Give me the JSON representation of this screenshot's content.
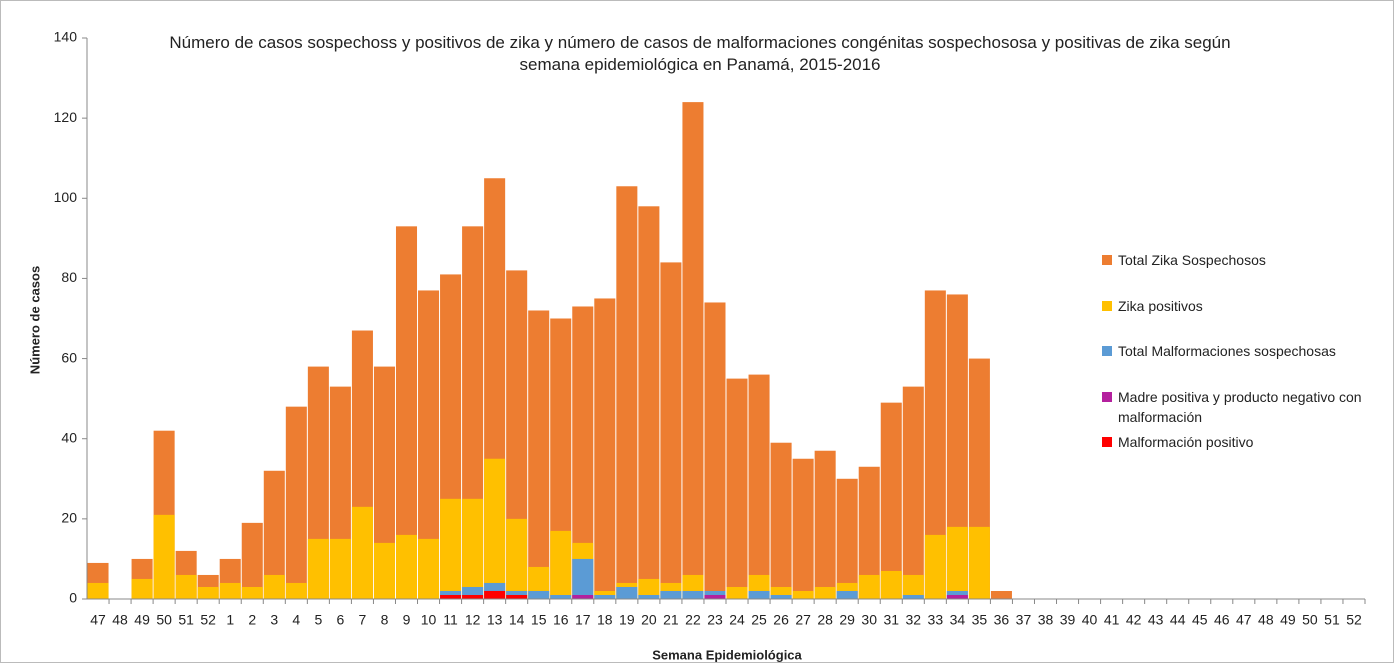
{
  "chart_data": {
    "type": "bar",
    "title": "Número de casos sospechoss y positivos de zika y número de casos de malformaciones congénitas sospechososa y positivas de zika según semana epidemiológica en Panamá, 2015-2016",
    "x_label": "Semana Epidemiológica",
    "y_label": "Número de casos",
    "categories": [
      "47",
      "48",
      "49",
      "50",
      "51",
      "52",
      "1",
      "2",
      "3",
      "4",
      "5",
      "6",
      "7",
      "8",
      "9",
      "10",
      "11",
      "12",
      "13",
      "14",
      "15",
      "16",
      "17",
      "18",
      "19",
      "20",
      "21",
      "22",
      "23",
      "24",
      "25",
      "26",
      "27",
      "28",
      "29",
      "30",
      "31",
      "32",
      "33",
      "34",
      "35",
      "36",
      "37",
      "38",
      "39",
      "40",
      "41",
      "42",
      "43",
      "44",
      "45",
      "46",
      "47",
      "48",
      "49",
      "50",
      "51",
      "52"
    ],
    "series": [
      {
        "name": "Total Zika Sospechosos",
        "color": "#ed7d31",
        "values": [
          9,
          0,
          10,
          42,
          12,
          6,
          10,
          19,
          32,
          48,
          58,
          53,
          67,
          58,
          93,
          77,
          81,
          93,
          105,
          82,
          72,
          70,
          73,
          75,
          103,
          98,
          84,
          124,
          74,
          55,
          56,
          39,
          35,
          37,
          30,
          33,
          49,
          53,
          77,
          76,
          60,
          2,
          0,
          0,
          0,
          0,
          0,
          0,
          0,
          0,
          0,
          0,
          0,
          0,
          0,
          0,
          0,
          0
        ]
      },
      {
        "name": "Zika positivos",
        "color": "#ffc000",
        "values": [
          4,
          0,
          5,
          21,
          6,
          3,
          4,
          3,
          6,
          4,
          15,
          15,
          23,
          14,
          16,
          15,
          25,
          25,
          35,
          20,
          8,
          17,
          14,
          2,
          4,
          5,
          4,
          6,
          2,
          3,
          6,
          3,
          2,
          3,
          4,
          6,
          7,
          6,
          16,
          18,
          18,
          0,
          0,
          0,
          0,
          0,
          0,
          0,
          0,
          0,
          0,
          0,
          0,
          0,
          0,
          0,
          0,
          0
        ]
      },
      {
        "name": "Total Malformaciones sospechosas",
        "color": "#5b9bd5",
        "values": [
          0,
          0,
          0,
          0,
          0,
          0,
          0,
          0,
          0,
          0,
          0,
          0,
          0,
          0,
          0,
          0,
          2,
          3,
          4,
          2,
          2,
          1,
          10,
          1,
          3,
          1,
          2,
          2,
          2,
          0,
          2,
          1,
          0,
          0,
          2,
          0,
          0,
          1,
          0,
          2,
          0,
          0,
          0,
          0,
          0,
          0,
          0,
          0,
          0,
          0,
          0,
          0,
          0,
          0,
          0,
          0,
          0,
          0
        ]
      },
      {
        "name": "Madre positiva y producto negativo con malformación",
        "color": "#b4209e",
        "values": [
          0,
          0,
          0,
          0,
          0,
          0,
          0,
          0,
          0,
          0,
          0,
          0,
          0,
          0,
          0,
          0,
          0,
          0,
          0,
          0,
          0,
          0,
          1,
          0,
          0,
          0,
          0,
          0,
          1,
          0,
          0,
          0,
          0,
          0,
          0,
          0,
          0,
          0,
          0,
          1,
          0,
          0,
          0,
          0,
          0,
          0,
          0,
          0,
          0,
          0,
          0,
          0,
          0,
          0,
          0,
          0,
          0,
          0
        ]
      },
      {
        "name": "Malformación positivo",
        "color": "#ff0000",
        "values": [
          0,
          0,
          0,
          0,
          0,
          0,
          0,
          0,
          0,
          0,
          0,
          0,
          0,
          0,
          0,
          0,
          1,
          1,
          2,
          1,
          0,
          0,
          0,
          0,
          0,
          0,
          0,
          0,
          0,
          0,
          0,
          0,
          0,
          0,
          0,
          0,
          0,
          0,
          0,
          0,
          0,
          0,
          0,
          0,
          0,
          0,
          0,
          0,
          0,
          0,
          0,
          0,
          0,
          0,
          0,
          0,
          0,
          0
        ]
      }
    ],
    "ylim": [
      0,
      140
    ],
    "yticks": [
      0,
      20,
      40,
      60,
      80,
      100,
      120,
      140
    ],
    "grid": false,
    "legend": "right"
  }
}
